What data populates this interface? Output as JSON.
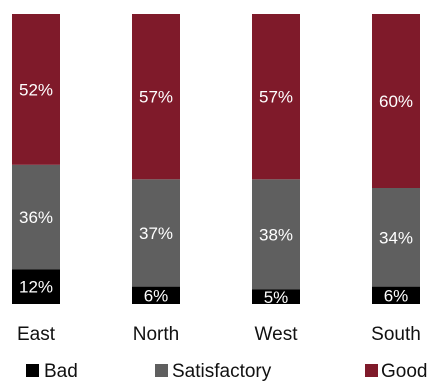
{
  "chart_data": {
    "type": "bar",
    "stacked": true,
    "percent": true,
    "categories": [
      "East",
      "North",
      "West",
      "South"
    ],
    "series": [
      {
        "name": "Bad",
        "values": [
          12,
          6,
          5,
          6
        ],
        "labels": [
          "12%",
          "6%",
          "5%",
          "6%"
        ],
        "color": "#000000"
      },
      {
        "name": "Satisfactory",
        "values": [
          36,
          37,
          38,
          34
        ],
        "labels": [
          "36%",
          "37%",
          "38%",
          "34%"
        ],
        "color": "#5f5f5f"
      },
      {
        "name": "Good",
        "values": [
          52,
          57,
          57,
          60
        ],
        "labels": [
          "52%",
          "57%",
          "57%",
          "60%"
        ],
        "color": "#7f1a2a"
      }
    ],
    "ylim": [
      0,
      100
    ],
    "legend_position": "bottom",
    "grid": false
  }
}
